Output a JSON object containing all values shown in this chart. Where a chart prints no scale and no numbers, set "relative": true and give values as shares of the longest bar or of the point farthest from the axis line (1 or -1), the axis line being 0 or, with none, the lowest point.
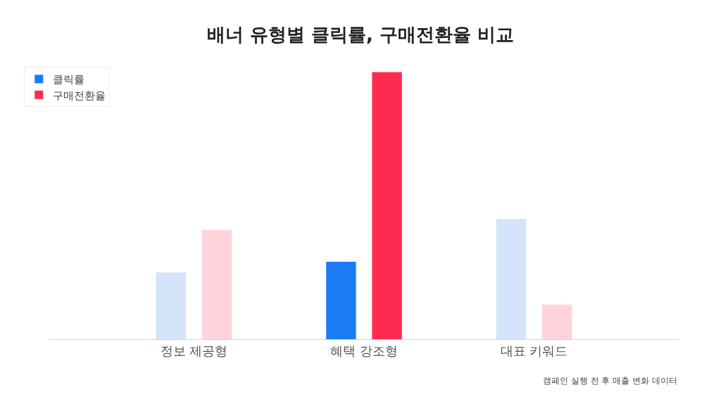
{
  "chart_data": {
    "type": "bar",
    "title": "배너 유형별 클릭률, 구매전환율 비교",
    "relative": true,
    "categories": [
      "정보 제공형",
      "혜택 강조형",
      "대표 키워드"
    ],
    "series": [
      {
        "name": "클릭률",
        "color": "#1a7cf5",
        "colors": [
          "#d3e4fb",
          "#1a7cf5",
          "#d3e4fb"
        ],
        "values": [
          0.25,
          0.29,
          0.45
        ]
      },
      {
        "name": "구매전환율",
        "color": "#ff2a4f",
        "colors": [
          "#ffd3db",
          "#ff2a4f",
          "#ffd3db"
        ],
        "values": [
          0.41,
          1.0,
          0.13
        ]
      }
    ],
    "legend": "top left",
    "annotations": [
      "캠페인 실행 전 후 매출 변화 데이터"
    ]
  }
}
